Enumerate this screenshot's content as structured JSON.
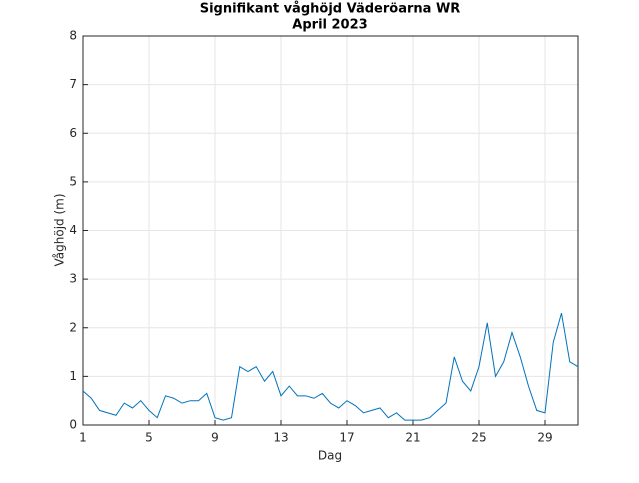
{
  "chart_data": {
    "type": "line",
    "title": "Signifikant våghöjd Väderöarna WR",
    "subtitle": "April 2023",
    "x_label": "Dag",
    "y_label": "Våghöjd (m)",
    "x": [
      1,
      1.5,
      2,
      2.5,
      3,
      3.5,
      4,
      4.5,
      5,
      5.5,
      6,
      6.5,
      7,
      7.5,
      8,
      8.5,
      9,
      9.5,
      10,
      10.5,
      11,
      11.5,
      12,
      12.5,
      13,
      13.5,
      14,
      14.5,
      15,
      15.5,
      16,
      16.5,
      17,
      17.5,
      18,
      18.5,
      19,
      19.5,
      20,
      20.5,
      21,
      21.5,
      22,
      22.5,
      23,
      23.5,
      24,
      24.5,
      25,
      25.5,
      26,
      26.5,
      27,
      27.5,
      28,
      28.5,
      29,
      29.5,
      30,
      30.5,
      31
    ],
    "series": [
      {
        "color": "#0072bd",
        "values": [
          0.7,
          0.55,
          0.3,
          0.25,
          0.2,
          0.45,
          0.35,
          0.5,
          0.3,
          0.15,
          0.6,
          0.55,
          0.45,
          0.5,
          0.5,
          0.65,
          0.15,
          0.1,
          0.15,
          1.2,
          1.1,
          1.2,
          0.9,
          1.1,
          0.6,
          0.8,
          0.6,
          0.6,
          0.55,
          0.65,
          0.45,
          0.35,
          0.5,
          0.4,
          0.25,
          0.3,
          0.35,
          0.15,
          0.25,
          0.1,
          0.1,
          0.1,
          0.15,
          0.3,
          0.45,
          1.4,
          0.9,
          0.7,
          1.2,
          2.1,
          1.0,
          1.3,
          1.9,
          1.4,
          0.8,
          0.3,
          0.25,
          1.7,
          2.3,
          1.3,
          1.2
        ]
      }
    ],
    "xlim": [
      1,
      31
    ],
    "xticks": [
      1,
      5,
      9,
      13,
      17,
      21,
      25,
      29
    ],
    "ylim": [
      0,
      8
    ],
    "yticks": [
      0,
      1,
      2,
      3,
      4,
      5,
      6,
      7,
      8
    ],
    "grid": true
  }
}
